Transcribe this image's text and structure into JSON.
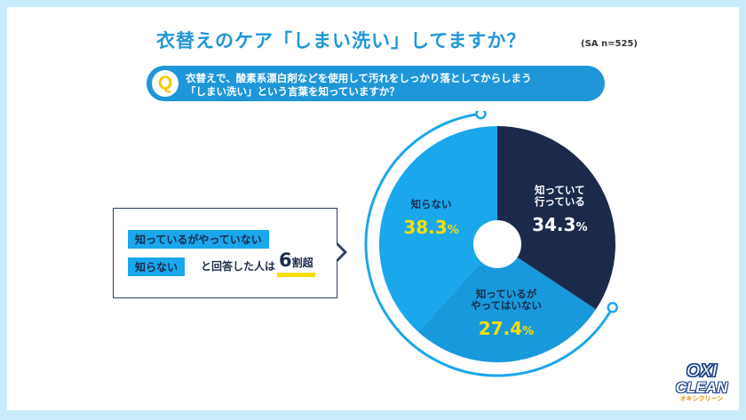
{
  "title": "衣替えのケア「しまい洗い」してますか？",
  "sample_note": "(SA n=525)",
  "question": {
    "marker": "Q",
    "line1": "衣替えで、酸素系漂白剤などを使用して汚れをしっかり落としてからしまう",
    "line2": "「しまい洗い」という言葉を知っていますか？"
  },
  "callout": {
    "highlight1": "知っているがやっていない",
    "highlight2": "知らない",
    "text": "と回答した人は",
    "emph_number": "6",
    "emph_unit": "割超"
  },
  "colors": {
    "accent": "#1f96d8",
    "navy": "#1b2a4a",
    "mid_blue": "#1899dc",
    "light_blue": "#1aa7ec",
    "yellow": "#f7e000"
  },
  "logo": {
    "line1": "OXI",
    "line2": "CLEAN",
    "kana": "オキシクリーン"
  },
  "chart_data": {
    "type": "pie",
    "slices": [
      {
        "label": [
          "知っていて",
          "行っている"
        ],
        "value": 34.3,
        "display": "34.3",
        "color": "#1b2a4a",
        "value_color": "#ffffff",
        "label_color": "#ffffff"
      },
      {
        "label": [
          "知っているが",
          "やってはいない"
        ],
        "value": 27.4,
        "display": "27.4",
        "color": "#1899dc",
        "value_color": "#f7e000",
        "label_color": "#1b2a4a"
      },
      {
        "label": [
          "知らない"
        ],
        "value": 38.3,
        "display": "38.3",
        "color": "#1aa7ec",
        "value_color": "#f7e000",
        "label_color": "#1b2a4a"
      }
    ],
    "unit": "%",
    "donut_hole": true,
    "start": "12 o'clock",
    "direction": "clockwise"
  }
}
